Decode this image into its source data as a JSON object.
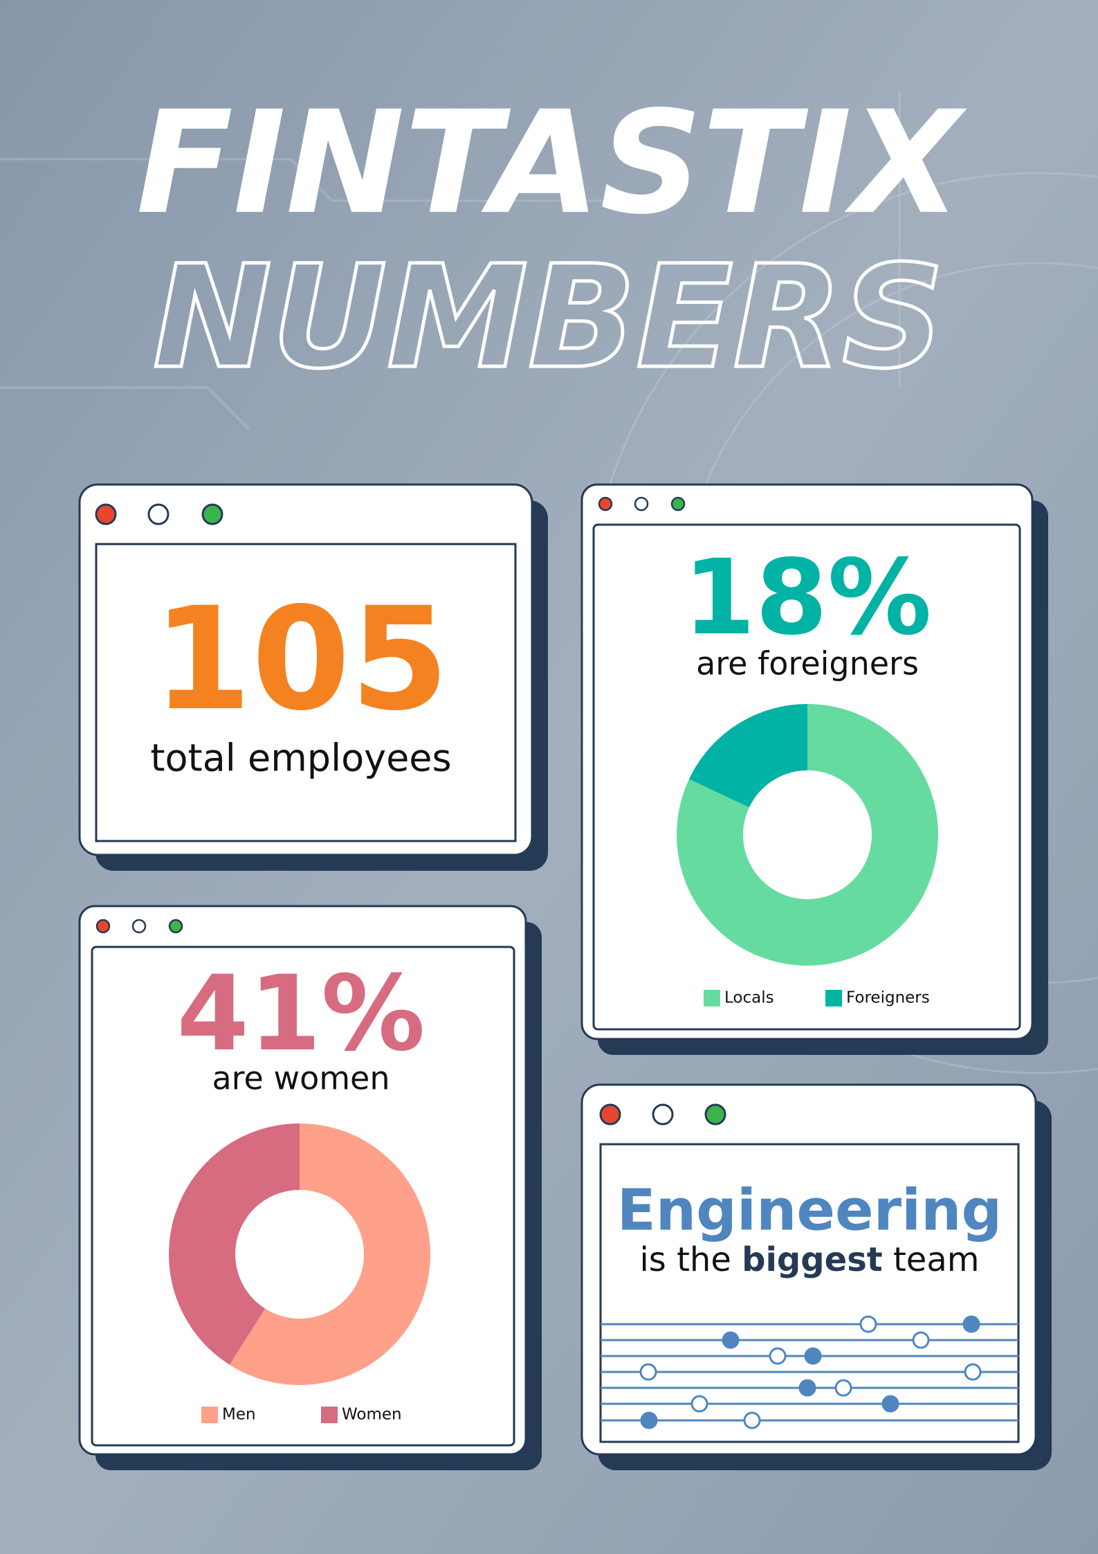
{
  "title": {
    "line1": "FINTASTIX",
    "line2": "NUMBERS"
  },
  "cards": {
    "employees": {
      "number": "105",
      "caption": "total employees"
    },
    "foreigners": {
      "number": "18%",
      "caption": "are foreigners"
    },
    "women": {
      "number": "41%",
      "caption": "are women"
    },
    "team": {
      "name": "Engineering",
      "caption_start": "is the",
      "caption_bold": "biggest",
      "caption_end": "team"
    }
  },
  "chart_data": [
    {
      "type": "pie",
      "categories": [
        "Locals",
        "Foreigners"
      ],
      "values": [
        82,
        18
      ],
      "colors": [
        "#66dba0",
        "#00b3a4"
      ]
    },
    {
      "type": "pie",
      "categories": [
        "Men",
        "Women"
      ],
      "values": [
        59,
        41
      ],
      "colors": [
        "#ffa08a",
        "#d76b80"
      ]
    }
  ]
}
